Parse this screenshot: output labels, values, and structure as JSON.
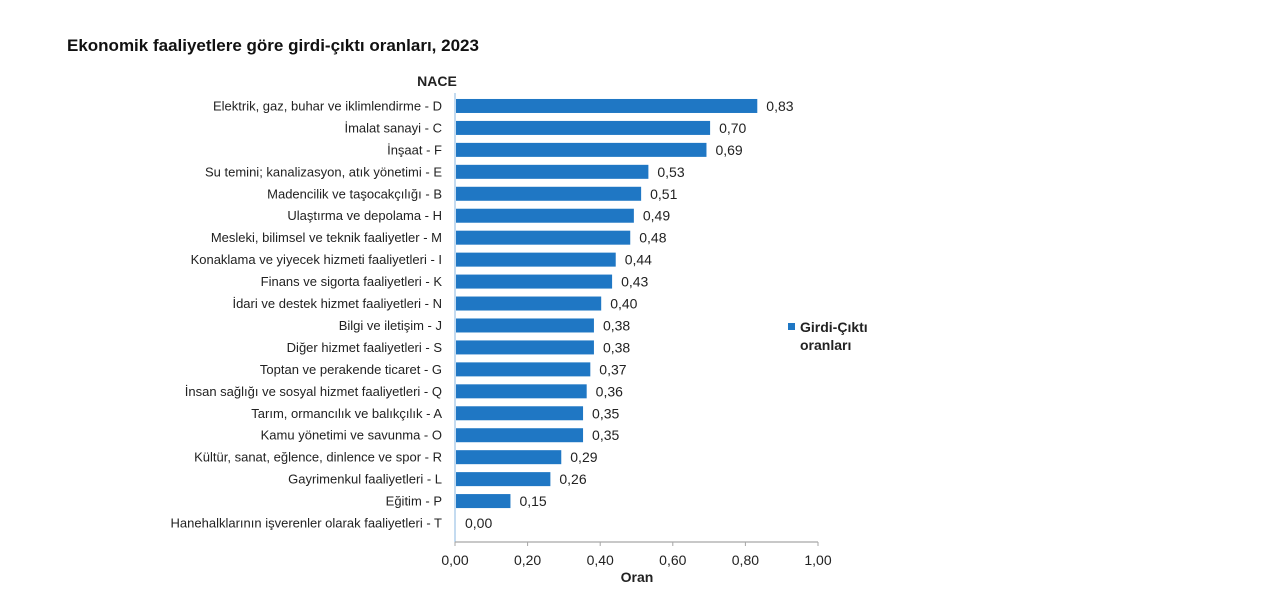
{
  "title": "Ekonomik faaliyetlere göre girdi-çıktı oranları, 2023",
  "chart_data": {
    "type": "bar",
    "orientation": "horizontal",
    "title": "Ekonomik faaliyetlere göre girdi-çıktı oranları, 2023",
    "ylabel": "NACE",
    "xlabel": "Oran",
    "xlim": [
      0,
      1
    ],
    "xticks": [
      "0,00",
      "0,20",
      "0,40",
      "0,60",
      "0,80",
      "1,00"
    ],
    "xtick_values": [
      0,
      0.2,
      0.4,
      0.6,
      0.8,
      1.0
    ],
    "grid": false,
    "legend_position": "right",
    "bar_color": "#1F77C4",
    "categories": [
      "Elektrik, gaz, buhar ve iklimlendirme - D",
      "İmalat sanayi - C",
      "İnşaat - F",
      "Su temini; kanalizasyon, atık yönetimi - E",
      "Madencilik ve taşocakçılığı - B",
      "Ulaştırma ve depolama - H",
      "Mesleki, bilimsel ve teknik faaliyetler - M",
      "Konaklama ve yiyecek hizmeti faaliyetleri - I",
      "Finans ve sigorta faaliyetleri - K",
      "İdari ve destek hizmet faaliyetleri - N",
      "Bilgi ve iletişim - J",
      "Diğer hizmet faaliyetleri - S",
      "Toptan ve perakende ticaret - G",
      "İnsan sağlığı ve sosyal hizmet faaliyetleri - Q",
      "Tarım, ormancılık ve balıkçılık - A",
      "Kamu yönetimi ve savunma - O",
      "Kültür, sanat, eğlence, dinlence ve spor - R",
      "Gayrimenkul faaliyetleri - L",
      "Eğitim - P",
      "Hanehalklarının işverenler olarak  faaliyetleri - T"
    ],
    "series": [
      {
        "name": "Girdi-Çıktı oranları",
        "legend_lines": [
          "Girdi-Çıktı",
          "oranları"
        ],
        "values": [
          0.83,
          0.7,
          0.69,
          0.53,
          0.51,
          0.49,
          0.48,
          0.44,
          0.43,
          0.4,
          0.38,
          0.38,
          0.37,
          0.36,
          0.35,
          0.35,
          0.29,
          0.26,
          0.15,
          0.0
        ],
        "labels": [
          "0,83",
          "0,70",
          "0,69",
          "0,53",
          "0,51",
          "0,49",
          "0,48",
          "0,44",
          "0,43",
          "0,40",
          "0,38",
          "0,38",
          "0,37",
          "0,36",
          "0,35",
          "0,35",
          "0,29",
          "0,26",
          "0,15",
          "0,00"
        ]
      }
    ]
  }
}
